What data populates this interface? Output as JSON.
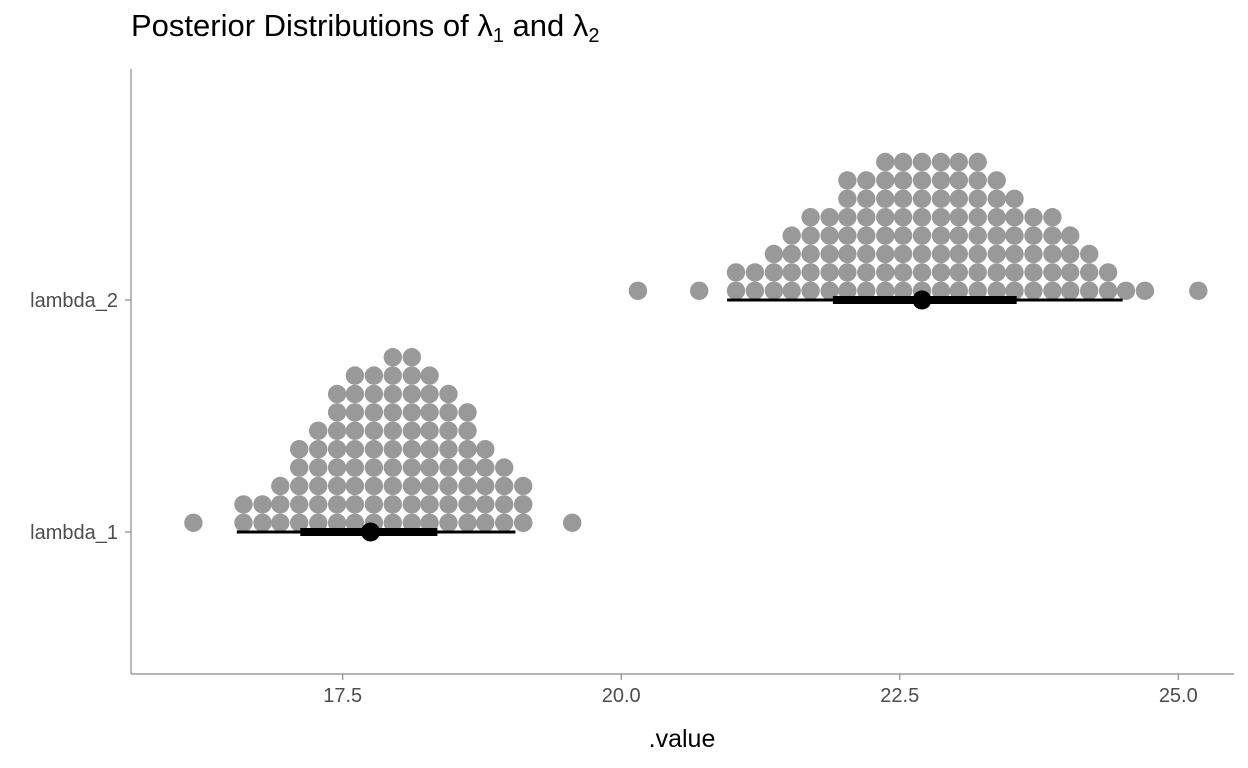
{
  "title": {
    "text": "Posterior Distributions of ",
    "sym1": "λ",
    "sub1": "1",
    "mid": " and ",
    "sym2": "λ",
    "sub2": "2"
  },
  "chart_data": {
    "type": "dotplot",
    "xlabel": ".value",
    "ylabel": "",
    "xlim": [
      15.6,
      25.5
    ],
    "x_ticks": [
      17.5,
      20.0,
      22.5,
      25.0
    ],
    "x_tick_labels": [
      "17.5",
      "20.0",
      "22.5",
      "25.0"
    ],
    "grid": false,
    "colors": {
      "dots": "#999999",
      "interval": "#000000"
    },
    "series": [
      {
        "name": "lambda_1",
        "dot_columns": [
          {
            "x": 16.16,
            "count": 1
          },
          {
            "x": 16.61,
            "count": 2
          },
          {
            "x": 16.78,
            "count": 2
          },
          {
            "x": 16.94,
            "count": 3
          },
          {
            "x": 17.11,
            "count": 5
          },
          {
            "x": 17.28,
            "count": 6
          },
          {
            "x": 17.45,
            "count": 8
          },
          {
            "x": 17.61,
            "count": 9
          },
          {
            "x": 17.78,
            "count": 9
          },
          {
            "x": 17.95,
            "count": 10
          },
          {
            "x": 18.12,
            "count": 10
          },
          {
            "x": 18.28,
            "count": 9
          },
          {
            "x": 18.45,
            "count": 8
          },
          {
            "x": 18.62,
            "count": 7
          },
          {
            "x": 18.78,
            "count": 5
          },
          {
            "x": 18.95,
            "count": 4
          },
          {
            "x": 19.12,
            "count": 3
          },
          {
            "x": 19.12,
            "count": 2
          },
          {
            "x": 19.56,
            "count": 1
          }
        ],
        "point": 17.75,
        "interval_66": [
          17.12,
          18.35
        ],
        "interval_95": [
          16.55,
          19.05
        ]
      },
      {
        "name": "lambda_2",
        "dot_columns": [
          {
            "x": 20.15,
            "count": 1
          },
          {
            "x": 20.7,
            "count": 1
          },
          {
            "x": 21.03,
            "count": 2
          },
          {
            "x": 21.2,
            "count": 2
          },
          {
            "x": 21.37,
            "count": 3
          },
          {
            "x": 21.53,
            "count": 4
          },
          {
            "x": 21.7,
            "count": 5
          },
          {
            "x": 21.87,
            "count": 5
          },
          {
            "x": 22.03,
            "count": 7
          },
          {
            "x": 22.2,
            "count": 7
          },
          {
            "x": 22.37,
            "count": 8
          },
          {
            "x": 22.53,
            "count": 8
          },
          {
            "x": 22.7,
            "count": 8
          },
          {
            "x": 22.87,
            "count": 8
          },
          {
            "x": 23.03,
            "count": 8
          },
          {
            "x": 23.2,
            "count": 8
          },
          {
            "x": 23.37,
            "count": 7
          },
          {
            "x": 23.53,
            "count": 6
          },
          {
            "x": 23.7,
            "count": 5
          },
          {
            "x": 23.87,
            "count": 5
          },
          {
            "x": 24.03,
            "count": 4
          },
          {
            "x": 24.2,
            "count": 3
          },
          {
            "x": 24.37,
            "count": 2
          },
          {
            "x": 24.53,
            "count": 1
          },
          {
            "x": 24.7,
            "count": 1
          },
          {
            "x": 25.18,
            "count": 1
          }
        ],
        "point": 22.7,
        "interval_66": [
          21.9,
          23.55
        ],
        "interval_95": [
          20.95,
          24.5
        ]
      }
    ]
  }
}
